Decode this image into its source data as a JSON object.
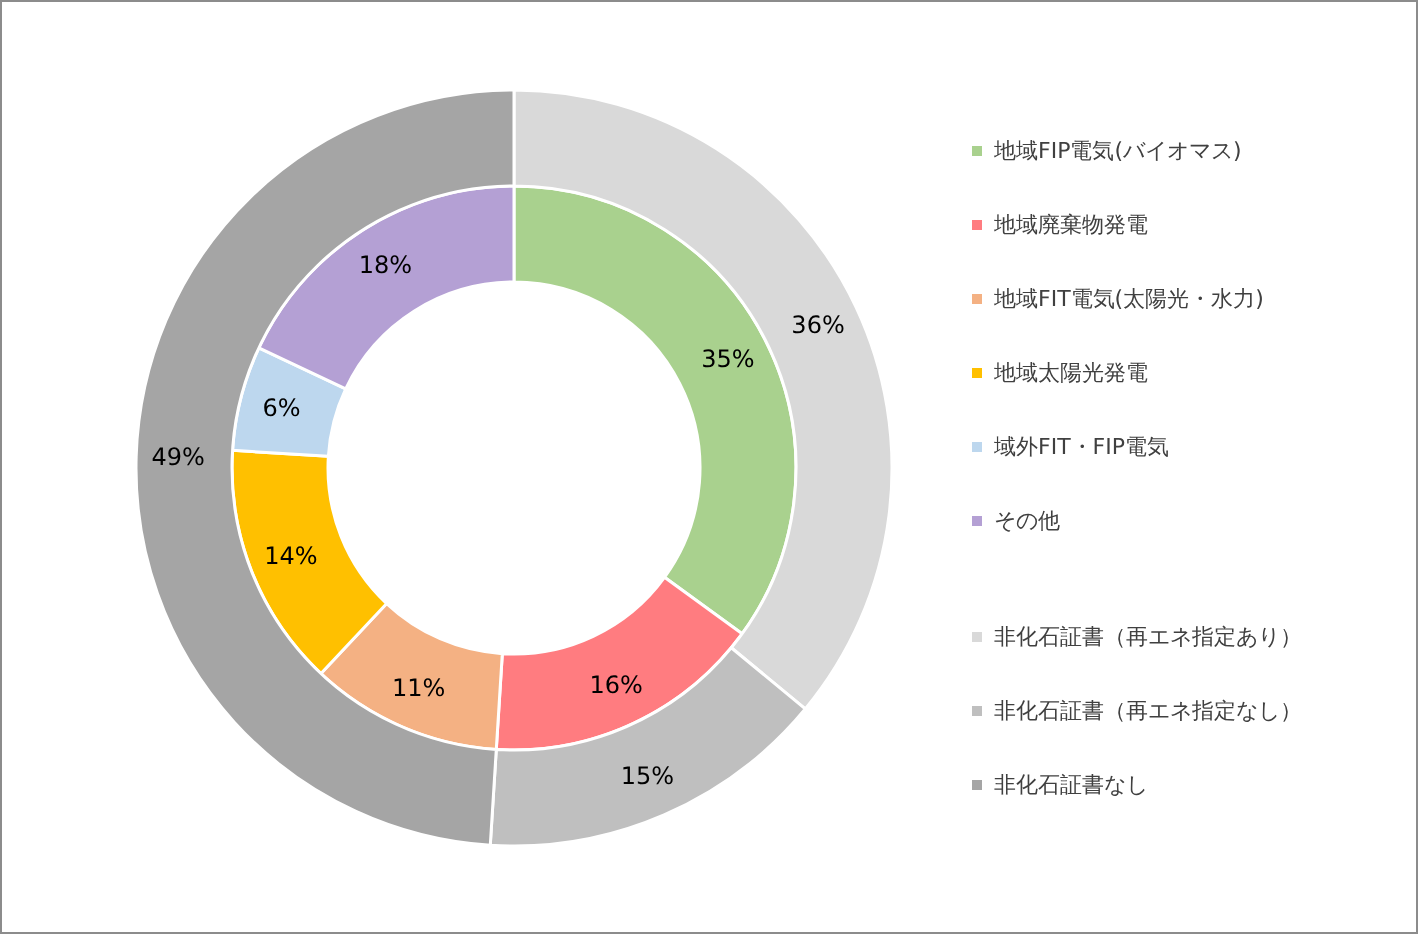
{
  "chart_data": [
    {
      "type": "donut",
      "legend": "right",
      "categories": [
        "地域FIP電気(バイオマス)",
        "地域廃棄物発電",
        "地域FIT電気(太陽光・水力)",
        "地域太陽光発電",
        "域外FIT・FIP電気",
        "その他"
      ],
      "values": [
        35,
        16,
        11,
        14,
        6,
        18
      ],
      "value_labels": [
        "35%",
        "16%",
        "11%",
        "14%",
        "6%",
        "18%"
      ],
      "colors": [
        "#a9d18e",
        "#ff7c80",
        "#f4b183",
        "#ffc000",
        "#bdd7ee",
        "#b4a0d4"
      ]
    },
    {
      "type": "donut",
      "legend": "right",
      "categories": [
        "非化石証書（再エネ指定あり）",
        "非化石証書（再エネ指定なし）",
        "非化石証書なし"
      ],
      "values": [
        36,
        15,
        49
      ],
      "value_labels": [
        "36%",
        "15%",
        "49%"
      ],
      "colors": [
        "#d9d9d9",
        "#bfbfbf",
        "#a5a5a5"
      ]
    }
  ]
}
